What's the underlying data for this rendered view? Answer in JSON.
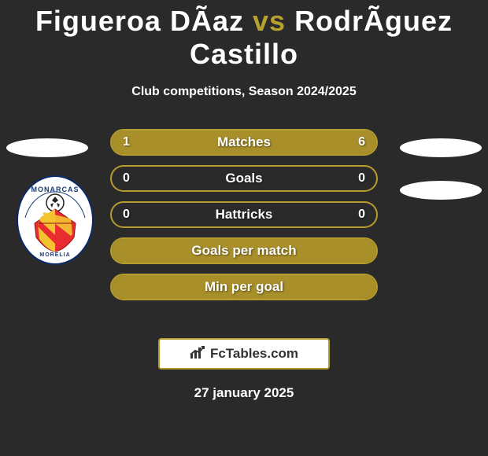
{
  "header": {
    "player1": "Figueroa DÃ­az",
    "vs": "vs",
    "player2": "RodrÃ­guez Castillo",
    "subtitle": "Club competitions, Season 2024/2025"
  },
  "colors": {
    "accent": "#a88f2a",
    "accent_border": "#b59c2e",
    "background": "#2a2a2a",
    "ellipse": "#ffffff",
    "text": "#ffffff"
  },
  "stats": [
    {
      "label": "Matches",
      "left_val": "1",
      "right_val": "6",
      "left_pct": 14.3,
      "right_pct": 85.7,
      "show_vals": true
    },
    {
      "label": "Goals",
      "left_val": "0",
      "right_val": "0",
      "left_pct": 0,
      "right_pct": 0,
      "show_vals": true
    },
    {
      "label": "Hattricks",
      "left_val": "0",
      "right_val": "0",
      "left_pct": 0,
      "right_pct": 0,
      "show_vals": true
    },
    {
      "label": "Goals per match",
      "left_val": "",
      "right_val": "",
      "left_pct": 100,
      "right_pct": 0,
      "show_vals": false
    },
    {
      "label": "Min per goal",
      "left_val": "",
      "right_val": "",
      "left_pct": 100,
      "right_pct": 0,
      "show_vals": false
    }
  ],
  "club_badge": {
    "name": "monarcas-morelia-badge",
    "top_text": "MONARCAS",
    "bottom_text": "MORELIA",
    "shield_color": "#e82c2f",
    "stripe_color": "#f4c430",
    "outline": "#0a2a6b"
  },
  "footer": {
    "brand": "FcTables.com",
    "date": "27 january 2025"
  }
}
